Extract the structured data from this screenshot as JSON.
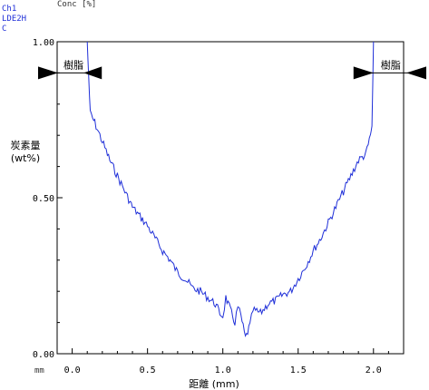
{
  "header": {
    "channel": "Ch1",
    "sample": "LDE2H",
    "element": "C",
    "unit": "Conc [%]"
  },
  "colors": {
    "series": "#1f2fd8",
    "axis": "#000000"
  },
  "chart_data": {
    "type": "line",
    "xlabel": "距離 (mm)",
    "x_unit": "mm",
    "ylabel_line1": "炭素量",
    "ylabel_line2": "(wt%)",
    "xlim": [
      -0.1,
      2.2
    ],
    "ylim": [
      0,
      1
    ],
    "xticks": [
      {
        "value": 0.0,
        "label": "0.0"
      },
      {
        "value": 0.5,
        "label": "0.5"
      },
      {
        "value": 1.0,
        "label": "1.0"
      },
      {
        "value": 1.5,
        "label": "1.5"
      },
      {
        "value": 2.0,
        "label": "2.0"
      }
    ],
    "yticks": [
      {
        "value": 0.0,
        "label": "0.00"
      },
      {
        "value": 0.5,
        "label": "0.50"
      },
      {
        "value": 1.0,
        "label": "1.00"
      }
    ],
    "annotations": [
      {
        "text": "樹脂",
        "side": "left",
        "x_from": -0.1,
        "x_to": 0.1,
        "y": 0.9
      },
      {
        "text": "樹脂",
        "side": "right",
        "x_from": 2.0,
        "x_to": 2.2,
        "y": 0.9
      }
    ],
    "series": [
      {
        "x": [
          0.1,
          0.11,
          0.12,
          0.15,
          0.2,
          0.25,
          0.3,
          0.35,
          0.4,
          0.45,
          0.5,
          0.55,
          0.6,
          0.65,
          0.7,
          0.75,
          0.8,
          0.85,
          0.9,
          0.95,
          0.98,
          1.0,
          1.02,
          1.05,
          1.08,
          1.1,
          1.12,
          1.15,
          1.18,
          1.2,
          1.25,
          1.3,
          1.35,
          1.4,
          1.45,
          1.5,
          1.55,
          1.6,
          1.65,
          1.7,
          1.75,
          1.8,
          1.85,
          1.9,
          1.95,
          1.98,
          1.99,
          2.0
        ],
        "y": [
          1.0,
          0.88,
          0.77,
          0.74,
          0.68,
          0.62,
          0.57,
          0.52,
          0.47,
          0.44,
          0.41,
          0.37,
          0.33,
          0.3,
          0.26,
          0.24,
          0.21,
          0.2,
          0.18,
          0.16,
          0.13,
          0.12,
          0.18,
          0.14,
          0.1,
          0.15,
          0.12,
          0.05,
          0.09,
          0.14,
          0.13,
          0.16,
          0.17,
          0.19,
          0.2,
          0.24,
          0.28,
          0.33,
          0.37,
          0.42,
          0.47,
          0.52,
          0.57,
          0.62,
          0.64,
          0.7,
          0.73,
          1.0
        ]
      }
    ]
  }
}
